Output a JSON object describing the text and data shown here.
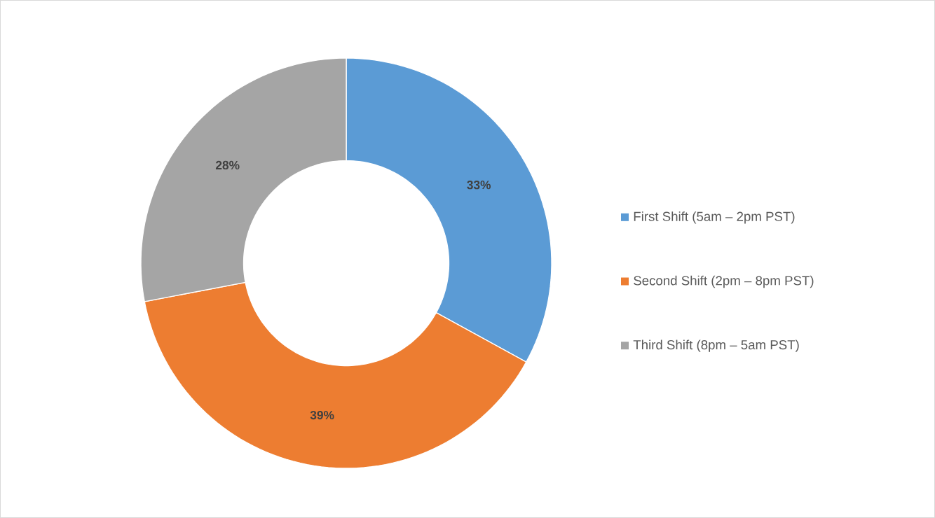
{
  "chart_data": {
    "type": "donut",
    "categories": [
      "First Shift (5am – 2pm PST)",
      "Second Shift (2pm – 8pm PST)",
      "Third Shift (8pm – 5am PST)"
    ],
    "values": [
      33,
      39,
      28
    ],
    "value_labels": [
      "33%",
      "39%",
      "28%"
    ],
    "colors": [
      "#5b9bd5",
      "#ed7d31",
      "#a5a5a5"
    ],
    "legend": "right"
  }
}
